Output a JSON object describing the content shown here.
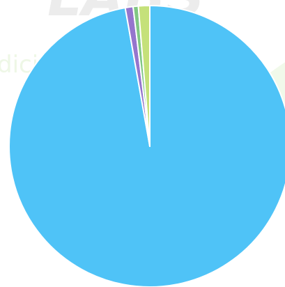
{
  "watermark": {
    "logo_text": "LABS",
    "sub_text": "dici",
    "logo_color": "#ececec",
    "sub_color": "#eef7e6",
    "leaf_color": "#f1f9ea"
  },
  "chart_data": {
    "type": "pie",
    "title": "",
    "slices": [
      {
        "value": 97.2,
        "color": "#4fc3f7"
      },
      {
        "value": 0.9,
        "color": "#9575cd"
      },
      {
        "value": 0.6,
        "color": "#81c784"
      },
      {
        "value": 1.3,
        "color": "#c5e17a"
      }
    ],
    "start_angle_deg": 0,
    "direction": "clockwise",
    "slice_border_color": "#ffffff",
    "legend": "none",
    "data_labels": "none"
  }
}
